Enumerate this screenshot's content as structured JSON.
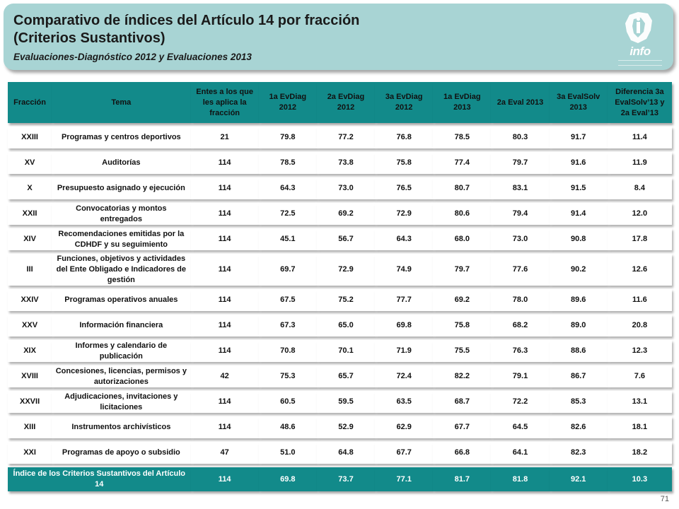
{
  "header": {
    "title_line1": "Comparativo de índices del Artículo 14 por fracción",
    "title_line2": "(Criterios Sustantivos)",
    "subtitle": "Evaluaciones-Diagnóstico  2012 y Evaluaciones 2013",
    "logo_text": "info"
  },
  "table": {
    "headers": {
      "fraccion": "Fracción",
      "tema": "Tema",
      "entes": "Entes a los que les aplica la fracción",
      "c1": "1a EvDiag 2012",
      "c2": "2a EvDiag 2012",
      "c3": "3a EvDiag 2012",
      "c4": "1a EvDiag 2013",
      "c5": "2a Eval 2013",
      "c6": "3a EvalSolv 2013",
      "c7": "Diferencia 3a EvalSolv’13 y 2a Eval’13"
    },
    "rows": [
      {
        "fraccion": "XXIII",
        "tema": "Programas y centros deportivos",
        "entes": "21",
        "c1": "79.8",
        "c2": "77.2",
        "c3": "76.8",
        "c4": "78.5",
        "c5": "80.3",
        "c6": "91.7",
        "c7": "11.4"
      },
      {
        "fraccion": "XV",
        "tema": "Auditorías",
        "entes": "114",
        "c1": "78.5",
        "c2": "73.8",
        "c3": "75.8",
        "c4": "77.4",
        "c5": "79.7",
        "c6": "91.6",
        "c7": "11.9"
      },
      {
        "fraccion": "X",
        "tema": "Presupuesto asignado  y ejecución",
        "entes": "114",
        "c1": "64.3",
        "c2": "73.0",
        "c3": "76.5",
        "c4": "80.7",
        "c5": "83.1",
        "c6": "91.5",
        "c7": "8.4"
      },
      {
        "fraccion": "XXII",
        "tema": "Convocatorias y montos entregados",
        "entes": "114",
        "c1": "72.5",
        "c2": "69.2",
        "c3": "72.9",
        "c4": "80.6",
        "c5": "79.4",
        "c6": "91.4",
        "c7": "12.0"
      },
      {
        "fraccion": "XIV",
        "tema": "Recomendaciones emitidas por la CDHDF y su seguimiento",
        "entes": "114",
        "c1": "45.1",
        "c2": "56.7",
        "c3": "64.3",
        "c4": "68.0",
        "c5": "73.0",
        "c6": "90.8",
        "c7": "17.8"
      },
      {
        "fraccion": "III",
        "tema": "Funciones, objetivos y actividades del Ente Obligado e Indicadores de gestión",
        "entes": "114",
        "c1": "69.7",
        "c2": "72.9",
        "c3": "74.9",
        "c4": "79.7",
        "c5": "77.6",
        "c6": "90.2",
        "c7": "12.6"
      },
      {
        "fraccion": "XXIV",
        "tema": "Programas operativos anuales",
        "entes": "114",
        "c1": "67.5",
        "c2": "75.2",
        "c3": "77.7",
        "c4": "69.2",
        "c5": "78.0",
        "c6": "89.6",
        "c7": "11.6"
      },
      {
        "fraccion": "XXV",
        "tema": "Información financiera",
        "entes": "114",
        "c1": "67.3",
        "c2": "65.0",
        "c3": "69.8",
        "c4": "75.8",
        "c5": "68.2",
        "c6": "89.0",
        "c7": "20.8"
      },
      {
        "fraccion": "XIX",
        "tema": "Informes y calendario de publicación",
        "entes": "114",
        "c1": "70.8",
        "c2": "70.1",
        "c3": "71.9",
        "c4": "75.5",
        "c5": "76.3",
        "c6": "88.6",
        "c7": "12.3"
      },
      {
        "fraccion": "XVIII",
        "tema": "Concesiones, licencias, permisos y autorizaciones",
        "entes": "42",
        "c1": "75.3",
        "c2": "65.7",
        "c3": "72.4",
        "c4": "82.2",
        "c5": "79.1",
        "c6": "86.7",
        "c7": "7.6"
      },
      {
        "fraccion": "XXVII",
        "tema": "Adjudicaciones, invitaciones y licitaciones",
        "entes": "114",
        "c1": "60.5",
        "c2": "59.5",
        "c3": "63.5",
        "c4": "68.7",
        "c5": "72.2",
        "c6": "85.3",
        "c7": "13.1"
      },
      {
        "fraccion": "XIII",
        "tema": "Instrumentos archivísticos",
        "entes": "114",
        "c1": "48.6",
        "c2": "52.9",
        "c3": "62.9",
        "c4": "67.7",
        "c5": "64.5",
        "c6": "82.6",
        "c7": "18.1"
      },
      {
        "fraccion": "XXI",
        "tema": "Programas de apoyo o subsidio",
        "entes": "47",
        "c1": "51.0",
        "c2": "64.8",
        "c3": "67.7",
        "c4": "66.8",
        "c5": "64.1",
        "c6": "82.3",
        "c7": "18.2"
      }
    ],
    "total": {
      "label": "Índice de los Criterios Sustantivos del Artículo 14",
      "entes": "114",
      "c1": "69.8",
      "c2": "73.7",
      "c3": "77.1",
      "c4": "81.7",
      "c5": "81.8",
      "c6": "92.1",
      "c7": "10.3"
    }
  },
  "page_number": "71",
  "colors": {
    "header_bg": "#a8d4d4",
    "teal": "#128a8a"
  }
}
